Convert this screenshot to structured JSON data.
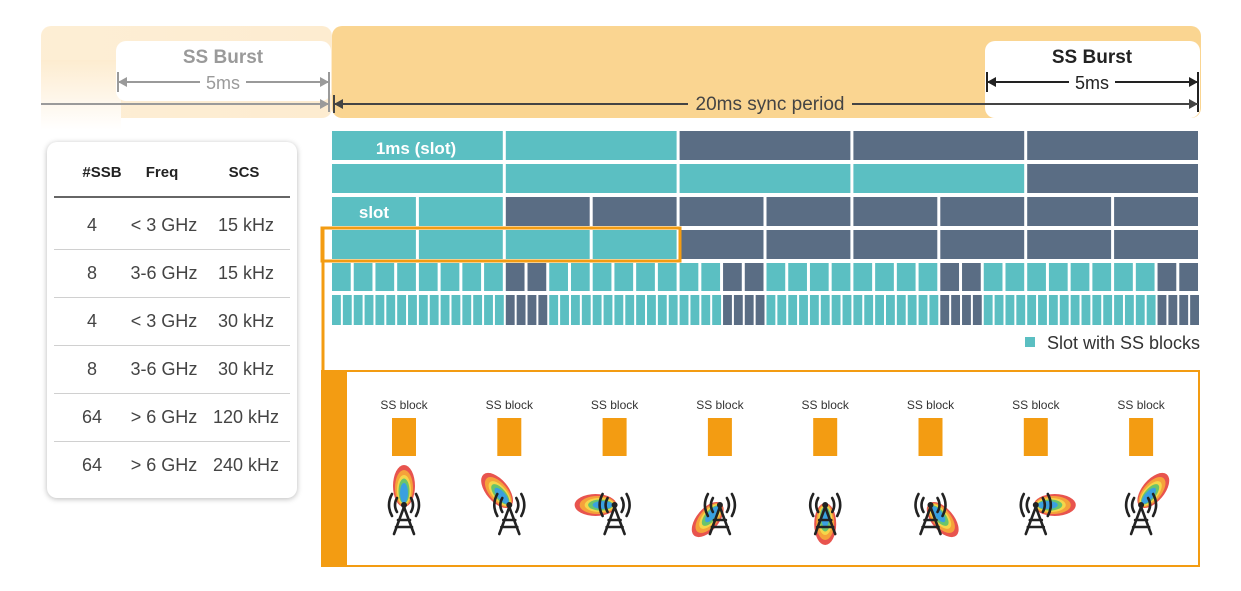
{
  "left_burst": {
    "title": "SS Burst",
    "duration": "5ms"
  },
  "right_burst": {
    "title": "SS Burst",
    "duration": "5ms"
  },
  "sync_period": "20ms sync period",
  "grid": {
    "slot_1ms_label": "1ms (slot)",
    "slot_label": "slot",
    "legend": "Slot with SS blocks",
    "rows": [
      {
        "n": 5,
        "ss": [
          0,
          1
        ]
      },
      {
        "n": 5,
        "ss": [
          0,
          1,
          2,
          3
        ]
      },
      {
        "n": 10,
        "ss": [
          0,
          1
        ]
      },
      {
        "n": 10,
        "ss": [
          0,
          1,
          2,
          3
        ]
      },
      {
        "n": 40,
        "ss": [
          0,
          1,
          2,
          3,
          4,
          5,
          6,
          7,
          10,
          11,
          12,
          13,
          14,
          15,
          16,
          17,
          20,
          21,
          22,
          23,
          24,
          25,
          26,
          27,
          30,
          31,
          32,
          33,
          34,
          35,
          36,
          37
        ]
      },
      {
        "n": 80,
        "ss": [
          0,
          1,
          2,
          3,
          4,
          5,
          6,
          7,
          8,
          9,
          10,
          11,
          12,
          13,
          14,
          15,
          20,
          21,
          22,
          23,
          24,
          25,
          26,
          27,
          28,
          29,
          30,
          31,
          32,
          33,
          34,
          35,
          40,
          41,
          42,
          43,
          44,
          45,
          46,
          47,
          48,
          49,
          50,
          51,
          52,
          53,
          54,
          55,
          60,
          61,
          62,
          63,
          64,
          65,
          66,
          67,
          68,
          69,
          70,
          71,
          72,
          73,
          74,
          75
        ]
      }
    ]
  },
  "table": {
    "headers": [
      "#SSB",
      "Freq",
      "SCS"
    ],
    "rows": [
      [
        "4",
        "< 3 GHz",
        "15 kHz"
      ],
      [
        "8",
        "3-6 GHz",
        "15 kHz"
      ],
      [
        "4",
        "< 3 GHz",
        "30 kHz"
      ],
      [
        "8",
        "3-6 GHz",
        "30 kHz"
      ],
      [
        "64",
        "> 6 GHz",
        "120 kHz"
      ],
      [
        "64",
        "> 6 GHz",
        "240 kHz"
      ]
    ]
  },
  "ss_blocks": {
    "label": "SS block",
    "beam_angles_deg": [
      0,
      -40,
      -90,
      -140,
      180,
      140,
      90,
      40
    ]
  },
  "colors": {
    "teal": "#5bbfc2",
    "slate": "#5a6d84",
    "orange": "#f39c12",
    "burst_band": "#fad591",
    "burst_band_light": "#fdecd0",
    "grey_text": "#9a9a9a",
    "dark_text": "#333333"
  }
}
